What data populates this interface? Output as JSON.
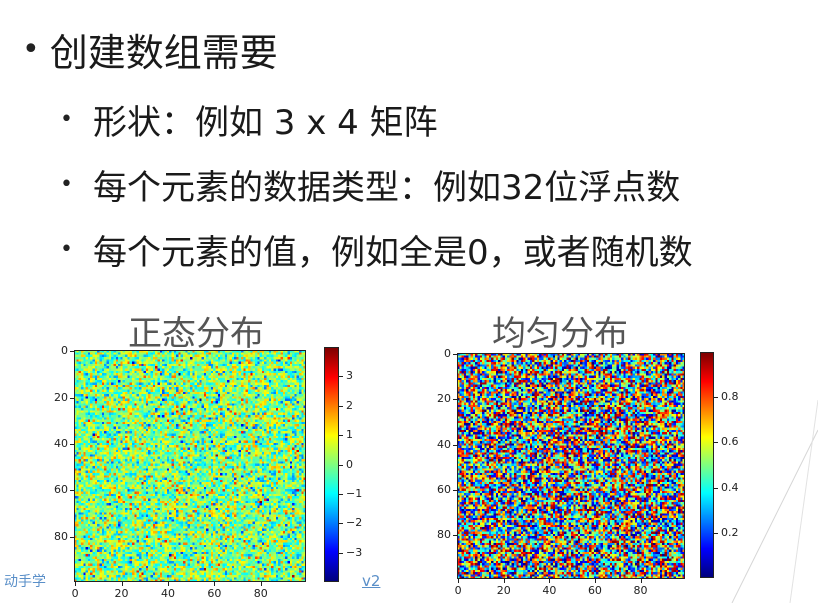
{
  "slide": {
    "heading": "创建数组需要",
    "bullets": [
      "形状：例如 3 x 4 矩阵",
      "每个元素的数据类型：例如32位浮点数",
      "每个元素的值，例如全是0，或者随机数"
    ]
  },
  "footer": {
    "left_text": "动手学",
    "right_text": "v2"
  },
  "chart_data": [
    {
      "type": "heatmap",
      "title": "正态分布",
      "grid_size": [
        100,
        100
      ],
      "distribution": "normal",
      "colormap": "jet",
      "x_ticks": [
        "0",
        "20",
        "40",
        "60",
        "80"
      ],
      "y_ticks": [
        "0",
        "20",
        "40",
        "60",
        "80"
      ],
      "x_tick_values": [
        0,
        20,
        40,
        60,
        80
      ],
      "y_tick_values": [
        0,
        20,
        40,
        60,
        80
      ],
      "colorbar_ticks": [
        "3",
        "2",
        "1",
        "0",
        "−1",
        "−2",
        "−3"
      ],
      "colorbar_values": [
        3,
        2,
        1,
        0,
        -1,
        -2,
        -3
      ],
      "value_range": [
        -4,
        4
      ],
      "grid": false
    },
    {
      "type": "heatmap",
      "title": "均匀分布",
      "grid_size": [
        100,
        100
      ],
      "distribution": "uniform",
      "colormap": "jet",
      "x_ticks": [
        "0",
        "20",
        "40",
        "60",
        "80"
      ],
      "y_ticks": [
        "0",
        "20",
        "40",
        "60",
        "80"
      ],
      "x_tick_values": [
        0,
        20,
        40,
        60,
        80
      ],
      "y_tick_values": [
        0,
        20,
        40,
        60,
        80
      ],
      "colorbar_ticks": [
        "0.8",
        "0.6",
        "0.4",
        "0.2"
      ],
      "colorbar_values": [
        0.8,
        0.6,
        0.4,
        0.2
      ],
      "value_range": [
        0,
        1
      ],
      "grid": false
    }
  ]
}
